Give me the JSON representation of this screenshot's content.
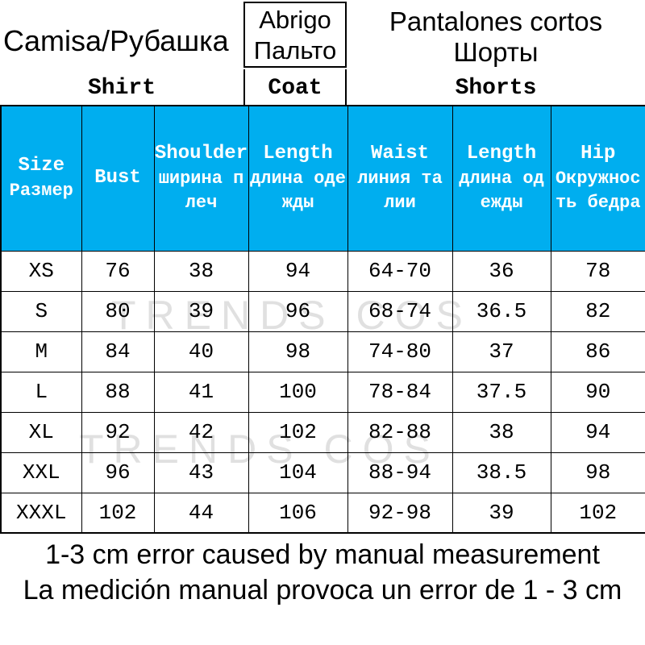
{
  "colors": {
    "header_bg": "#00AEEF",
    "header_text": "#ffffff",
    "border": "#000000",
    "watermark_color": "#c8c8c8"
  },
  "categories": {
    "shirt": {
      "label": "Camisa/Рубашка",
      "en": "Shirt"
    },
    "coat": {
      "line1": "Abrigo",
      "line2": "Пальто",
      "en": "Coat"
    },
    "shorts": {
      "line1": "Pantalones cortos",
      "line2": "Шорты",
      "en": "Shorts"
    }
  },
  "watermark": {
    "text": "TRENDS COS"
  },
  "table": {
    "headers": [
      {
        "en": "Size",
        "ru": [
          "Размер"
        ]
      },
      {
        "en": "Bust",
        "ru": []
      },
      {
        "en": "Shoulder",
        "ru": [
          "ширина п",
          "леч"
        ]
      },
      {
        "en": "Length",
        "ru": [
          "длина оде",
          "жды"
        ]
      },
      {
        "en": "Waist",
        "ru": [
          "линия та",
          "лии"
        ]
      },
      {
        "en": "Length",
        "ru": [
          "длина од",
          "ежды"
        ]
      },
      {
        "en": "Hip",
        "ru": [
          "Окружнос",
          "ть бедра"
        ]
      }
    ],
    "rows": [
      [
        "XS",
        "76",
        "38",
        "94",
        "64-70",
        "36",
        "78"
      ],
      [
        "S",
        "80",
        "39",
        "96",
        "68-74",
        "36.5",
        "82"
      ],
      [
        "M",
        "84",
        "40",
        "98",
        "74-80",
        "37",
        "86"
      ],
      [
        "L",
        "88",
        "41",
        "100",
        "78-84",
        "37.5",
        "90"
      ],
      [
        "XL",
        "92",
        "42",
        "102",
        "82-88",
        "38",
        "94"
      ],
      [
        "XXL",
        "96",
        "43",
        "104",
        "88-94",
        "38.5",
        "98"
      ],
      [
        "XXXL",
        "102",
        "44",
        "106",
        "92-98",
        "39",
        "102"
      ]
    ]
  },
  "footer": {
    "line1": "1-3 cm error caused by manual measurement",
    "line2": "La medición manual provoca un error de 1 - 3 cm"
  },
  "chart_data": {
    "type": "table",
    "columns": [
      "Size",
      "Bust",
      "Shoulder",
      "Length",
      "Waist",
      "Length",
      "Hip"
    ],
    "column_groups": [
      "Shirt",
      "Coat",
      "Shorts"
    ],
    "rows": [
      [
        "XS",
        "76",
        "38",
        "94",
        "64-70",
        "36",
        "78"
      ],
      [
        "S",
        "80",
        "39",
        "96",
        "68-74",
        "36.5",
        "82"
      ],
      [
        "M",
        "84",
        "40",
        "98",
        "74-80",
        "37",
        "86"
      ],
      [
        "L",
        "88",
        "41",
        "100",
        "78-84",
        "37.5",
        "90"
      ],
      [
        "XL",
        "92",
        "42",
        "102",
        "82-88",
        "38",
        "94"
      ],
      [
        "XXL",
        "96",
        "43",
        "104",
        "88-94",
        "38.5",
        "98"
      ],
      [
        "XXXL",
        "102",
        "44",
        "106",
        "92-98",
        "39",
        "102"
      ]
    ]
  }
}
